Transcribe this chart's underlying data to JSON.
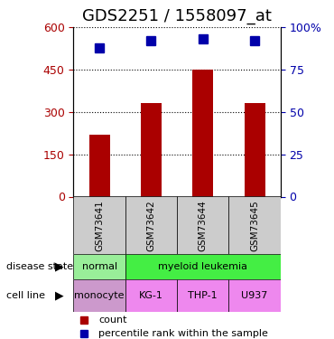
{
  "title": "GDS2251 / 1558097_at",
  "samples": [
    "GSM73641",
    "GSM73642",
    "GSM73644",
    "GSM73645"
  ],
  "counts": [
    220,
    330,
    450,
    330
  ],
  "percentiles": [
    88,
    92,
    93,
    92
  ],
  "left_ylim": [
    0,
    600
  ],
  "left_yticks": [
    0,
    150,
    300,
    450,
    600
  ],
  "right_ylim": [
    0,
    100
  ],
  "right_yticks": [
    0,
    25,
    50,
    75,
    100
  ],
  "bar_color": "#aa0000",
  "square_color": "#0000aa",
  "disease_state": [
    "normal",
    "myeloid leukemia",
    "myeloid leukemia",
    "myeloid leukemia"
  ],
  "cell_line": [
    "monocyte",
    "KG-1",
    "THP-1",
    "U937"
  ],
  "disease_colors": {
    "normal": "#99ee99",
    "myeloid leukemia": "#44ee44"
  },
  "cell_line_colors": {
    "monocyte": "#ee99ee",
    "KG-1": "#ee88ee",
    "THP-1": "#ee88ee",
    "U937": "#ee88ee"
  },
  "sample_bg_color": "#cccccc",
  "legend_count_color": "#aa0000",
  "legend_pct_color": "#0000aa",
  "title_fontsize": 13,
  "axis_label_fontsize": 9,
  "tick_fontsize": 9
}
